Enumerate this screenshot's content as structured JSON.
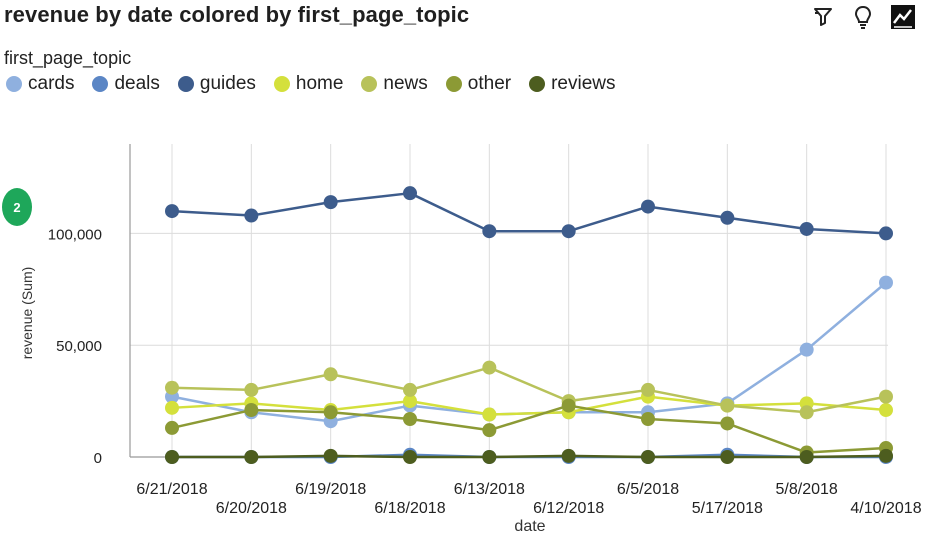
{
  "header": {
    "title": "revenue by date colored by first_page_topic"
  },
  "toolbar": {
    "filter_icon": "filter-icon",
    "insight_icon": "lightbulb-icon",
    "chart_icon": "chart-icon"
  },
  "badge": {
    "label": "2"
  },
  "legend": {
    "title": "first_page_topic"
  },
  "colors": {
    "cards": "#8fb0df",
    "deals": "#5b86c5",
    "guides": "#3d5c8c",
    "home": "#d4e03c",
    "news": "#b8c25a",
    "other": "#8c9a35",
    "reviews": "#4d5d1f"
  },
  "chart_data": {
    "type": "line",
    "title": "revenue by date colored by first_page_topic",
    "xlabel": "date",
    "ylabel": "revenue (Sum)",
    "ylim": [
      0,
      140000
    ],
    "yticks": [
      0,
      50000,
      100000
    ],
    "ytick_labels": [
      "0",
      "50,000",
      "100,000"
    ],
    "grid": true,
    "legend_placement": "top-left",
    "categories": [
      "6/21/2018",
      "6/20/2018",
      "6/19/2018",
      "6/18/2018",
      "6/13/2018",
      "6/12/2018",
      "6/5/2018",
      "5/17/2018",
      "5/8/2018",
      "4/10/2018"
    ],
    "series": [
      {
        "name": "cards",
        "values": [
          27000,
          20000,
          16000,
          23000,
          19000,
          20000,
          20000,
          24000,
          48000,
          78000
        ]
      },
      {
        "name": "deals",
        "values": [
          0,
          0,
          0,
          1000,
          0,
          0,
          0,
          1000,
          0,
          0
        ]
      },
      {
        "name": "guides",
        "values": [
          110000,
          108000,
          114000,
          118000,
          101000,
          101000,
          112000,
          107000,
          102000,
          100000
        ]
      },
      {
        "name": "home",
        "values": [
          22000,
          24000,
          21000,
          25000,
          19000,
          20000,
          27000,
          23000,
          24000,
          21000
        ]
      },
      {
        "name": "news",
        "values": [
          31000,
          30000,
          37000,
          30000,
          40000,
          25000,
          30000,
          23000,
          20000,
          27000
        ]
      },
      {
        "name": "other",
        "values": [
          13000,
          21000,
          20000,
          17000,
          12000,
          23000,
          17000,
          15000,
          2000,
          4000
        ]
      },
      {
        "name": "reviews",
        "values": [
          0,
          0,
          500,
          0,
          0,
          500,
          0,
          0,
          0,
          500
        ]
      }
    ]
  }
}
